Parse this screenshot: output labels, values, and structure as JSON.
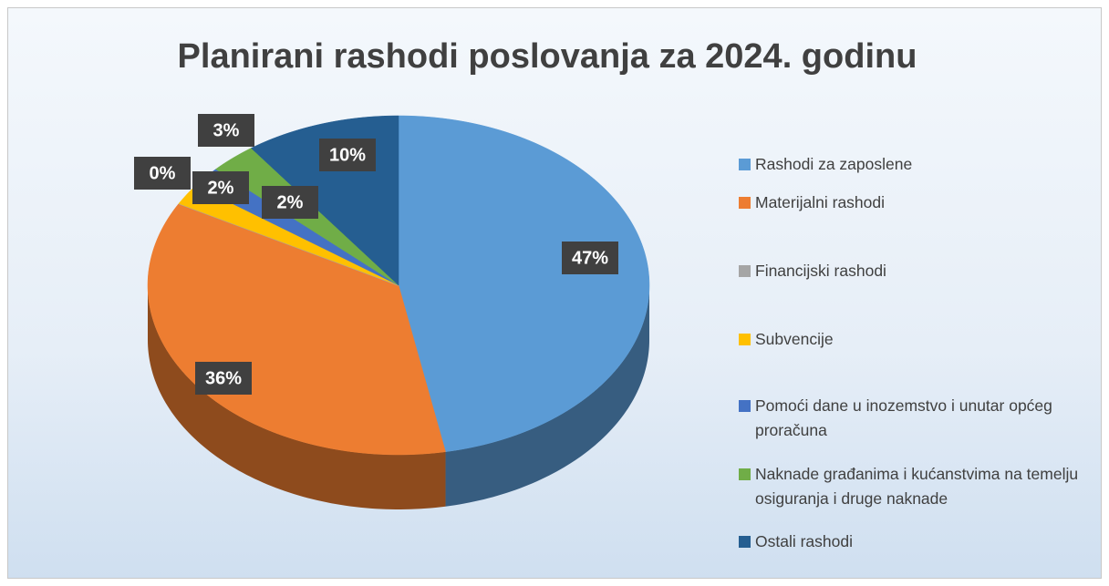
{
  "chart_data": {
    "type": "pie",
    "title": "Planirani rashodi poslovanja za 2024. godinu",
    "categories": [
      "Rashodi za zaposlene",
      "Materijalni rashodi",
      "Financijski rashodi",
      "Subvencije",
      "Pomoći dane u inozemstvo i unutar općeg proračuna",
      "Naknade građanima i kućanstvima na temelju osiguranja i druge naknade",
      "Ostali rashodi"
    ],
    "values": [
      47,
      36,
      0,
      2,
      2,
      3,
      10
    ],
    "value_labels": [
      "47%",
      "36%",
      "0%",
      "2%",
      "2%",
      "3%",
      "10%"
    ],
    "colors": [
      "#5b9bd5",
      "#ed7d31",
      "#a5a5a5",
      "#ffc000",
      "#4472c4",
      "#70ad47",
      "#255e91"
    ],
    "legend": "right"
  }
}
